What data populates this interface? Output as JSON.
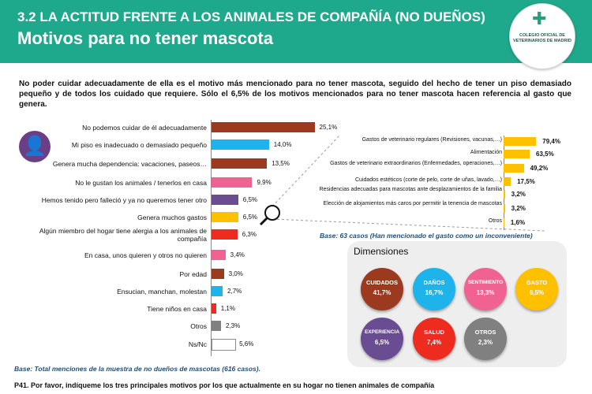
{
  "header": {
    "section": "3.2 LA ACTITUD FRENTE A LOS ANIMALES DE COMPAÑÍA (NO DUEÑOS)",
    "title": "Motivos para no tener mascota",
    "logo_text": "COLEGIO OFICIAL DE VETERINARIOS DE MADRID"
  },
  "lead_text": "No poder cuidar adecuadamente de ella es el motivo más mencionado para no tener mascota, seguido del hecho de tener un piso demasiado pequeño y de todos los cuidado que requiere. Sólo el 6,5% de los motivos mencionados para no tener mascota hacen referencia al gasto que genera.",
  "icons": {
    "person": "person-icon",
    "magnifier": "magnifier-icon"
  },
  "colors": {
    "header": "#1ea98c",
    "brown": "#9b3a1e",
    "blue": "#1eb3ea",
    "pink": "#f06292",
    "purple": "#6a4c93",
    "yellow": "#ffc000",
    "red": "#ee2b1f",
    "gray": "#808080"
  },
  "chart_data": [
    {
      "type": "bar",
      "orientation": "horizontal",
      "categories": [
        "No podemos cuidar de él adecuadamente",
        "Mi piso es inadecuado o demasiado pequeño",
        "Genera mucha dependencia: vacaciones, paseos…",
        "No le gustan los animales / tenerlos en casa",
        "Hemos tenido pero falleció y ya no queremos tener otro",
        "Genera muchos gastos",
        "Algún miembro del hogar tiene alergia a los animales de compañía",
        "En casa, unos quieren y otros no quieren",
        "Por edad",
        "Ensucian, manchan, molestan",
        "Tiene niños en casa",
        "Otros",
        "Ns/Nc"
      ],
      "values": [
        25.1,
        14.0,
        13.5,
        9.9,
        6.5,
        6.5,
        6.3,
        3.4,
        3.0,
        2.7,
        1.1,
        2.3,
        5.6
      ],
      "value_labels": [
        "25,1%",
        "14,0%",
        "13,5%",
        "9,9%",
        "6,5%",
        "6,5%",
        "6,3%",
        "3,4%",
        "3,0%",
        "2,7%",
        "1,1%",
        "2,3%",
        "5,6%"
      ],
      "bar_colors": [
        "#9b3a1e",
        "#1eb3ea",
        "#9b3a1e",
        "#f06292",
        "#6a4c93",
        "#ffc000",
        "#ee2b1f",
        "#f06292",
        "#9b3a1e",
        "#1eb3ea",
        "#ee2b1f",
        "#808080",
        "#ffffff"
      ],
      "base_note": "Base: Total menciones de la muestra de no dueños de mascotas (616 casos)."
    },
    {
      "type": "bar",
      "orientation": "horizontal",
      "categories": [
        "Gastos de veterinario regulares (Revisiones, vacunas,…)",
        "Alimentación",
        "Gastos de veterinario extraordinarios (Enfermedades, operaciones,…)",
        "Cuidados estéticos (corte de pelo, corte de uñas, lavado,…)",
        "Residencias adecuadas para mascotas ante desplazamientos de la familia",
        "Elección de alojamientos más caros por permitir la tenencia de mascotas",
        "Otros"
      ],
      "values": [
        79.4,
        63.5,
        49.2,
        17.5,
        3.2,
        3.2,
        1.6
      ],
      "value_labels": [
        "79,4%",
        "63,5%",
        "49,2%",
        "17,5%",
        "3,2%",
        "3,2%",
        "1,6%"
      ],
      "color": "#ffc000",
      "base_note": "Base: 63 casos (Han mencionado el gasto como un inconveniente)"
    }
  ],
  "dimensions": {
    "title": "Dimensiones",
    "items": [
      {
        "name": "CUIDADOS",
        "value": "41,7%",
        "color": "#9b3a1e"
      },
      {
        "name": "DAÑOS",
        "value": "16,7%",
        "color": "#1eb3ea"
      },
      {
        "name": "SENTIMIENTO",
        "value": "13,3%",
        "color": "#f06292"
      },
      {
        "name": "GASTO",
        "value": "6,5%",
        "color": "#ffc000"
      },
      {
        "name": "EXPERIENCIA",
        "value": "6,5%",
        "color": "#6a4c93"
      },
      {
        "name": "SALUD",
        "value": "7,4%",
        "color": "#ee2b1f"
      },
      {
        "name": "OTROS",
        "value": "2,3%",
        "color": "#808080"
      }
    ]
  },
  "question": "P41. Por favor, indíqueme los tres principales motivos por los que actualmente en su hogar no tienen animales de compañía"
}
